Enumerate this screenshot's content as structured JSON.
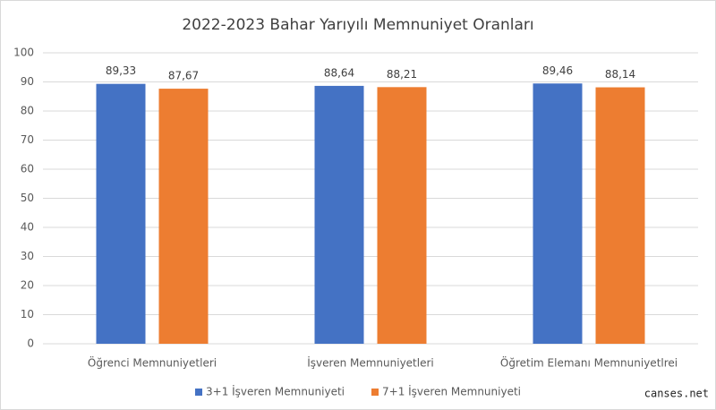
{
  "chart_data": {
    "type": "bar",
    "title": "2022-2023 Bahar Yarıyılı Memnuniyet Oranları",
    "categories": [
      "Öğrenci Memnuniyetleri",
      "İşveren Memnuniyetleri",
      "Öğretim Elemanı Memnuniyetlrei"
    ],
    "series": [
      {
        "name": "3+1 İşveren Memnuniyeti",
        "color": "#4472c4",
        "values": [
          89.33,
          88.64,
          89.46
        ],
        "value_labels": [
          "89,33",
          "88,64",
          "89,46"
        ]
      },
      {
        "name": "7+1 İşveren Memnuniyeti",
        "color": "#ed7d31",
        "values": [
          87.67,
          88.21,
          88.14
        ],
        "value_labels": [
          "87,67",
          "88,21",
          "88,14"
        ]
      }
    ],
    "ylim": [
      0,
      100
    ],
    "yticks": [
      0,
      10,
      20,
      30,
      40,
      50,
      60,
      70,
      80,
      90,
      100
    ],
    "grid": true,
    "legend": "bottom",
    "watermark": "canses.net"
  }
}
